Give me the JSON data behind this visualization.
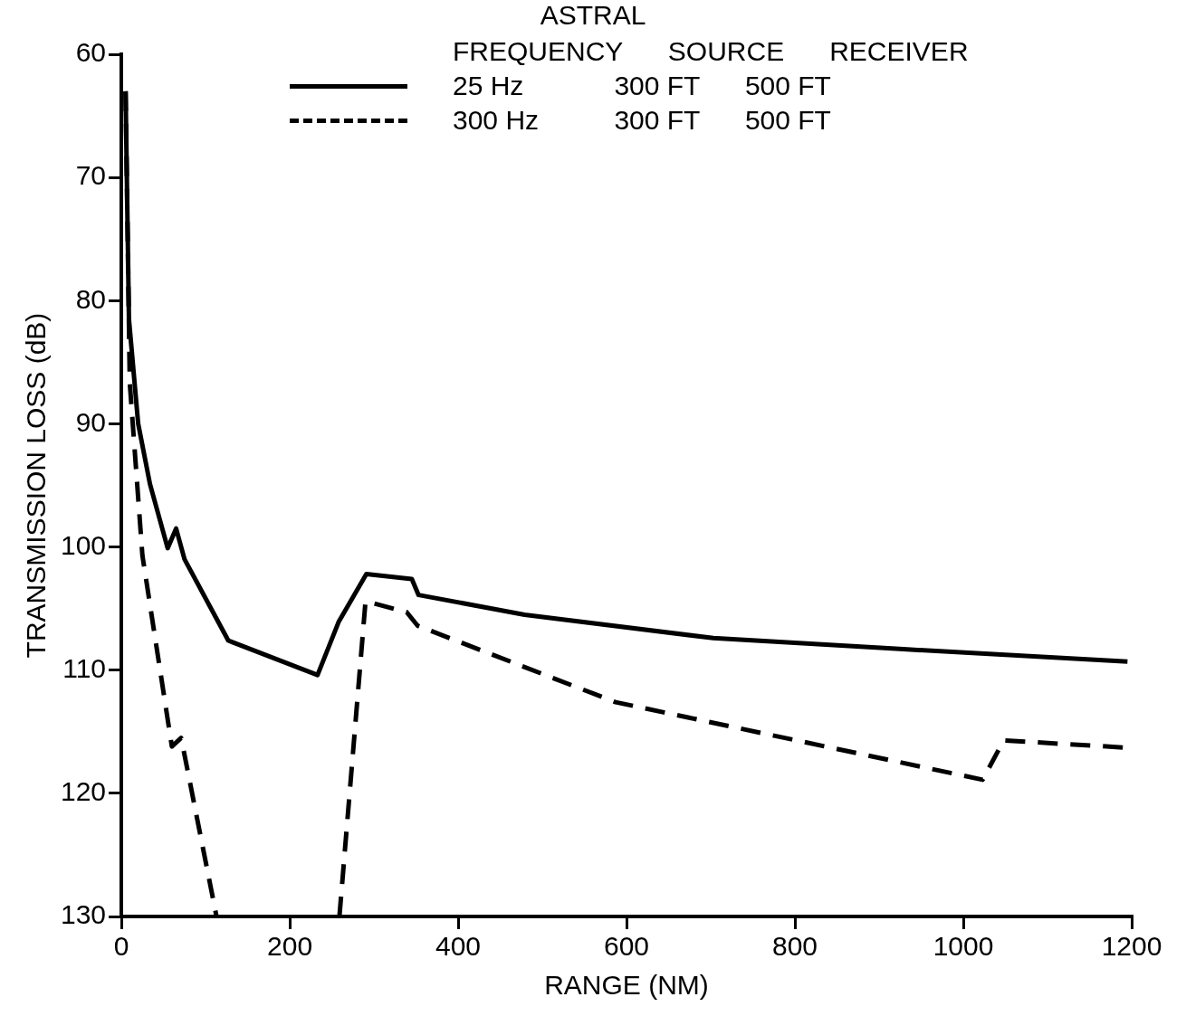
{
  "chart_data": {
    "type": "line",
    "title": "ASTRAL",
    "xlabel": "RANGE (NM)",
    "ylabel": "TRANSMISSION LOSS (dB)",
    "legend_title": "FREQUENCY      SOURCE      RECEIVER",
    "xlim": [
      0,
      1200
    ],
    "xticks": [
      0,
      200,
      400,
      600,
      800,
      1000,
      1200
    ],
    "ylim": [
      130,
      60
    ],
    "yticks": [
      60,
      70,
      80,
      90,
      100,
      110,
      120,
      130
    ],
    "grid": false,
    "legend": "top",
    "marker": "none",
    "series": [
      {
        "name": "25 Hz            300 FT      500 FT",
        "color": "#000000",
        "line_style": "solid",
        "x": [
          5,
          9,
          20,
          34,
          55,
          65,
          75,
          127,
          233,
          258,
          291,
          345,
          353,
          479,
          703,
          929,
          1195
        ],
        "values": [
          63,
          81.5,
          90,
          94.9,
          100.1,
          98.5,
          101,
          107.6,
          110.4,
          106.1,
          102.2,
          102.6,
          103.9,
          105.5,
          107.4,
          108.3,
          109.3
        ]
      },
      {
        "name": "300 Hz          300 FT      500 FT",
        "color": "#000000",
        "line_style": "dashed",
        "x": [
          5,
          10,
          25,
          60,
          71,
          113,
          186,
          259,
          290,
          339,
          352,
          587,
          1023,
          1048,
          1195
        ],
        "values": [
          63,
          86.7,
          100.7,
          116.2,
          115.5,
          130,
          null,
          130,
          104.4,
          105.3,
          106.4,
          112.6,
          118.9,
          115.7,
          116.3
        ]
      }
    ]
  }
}
